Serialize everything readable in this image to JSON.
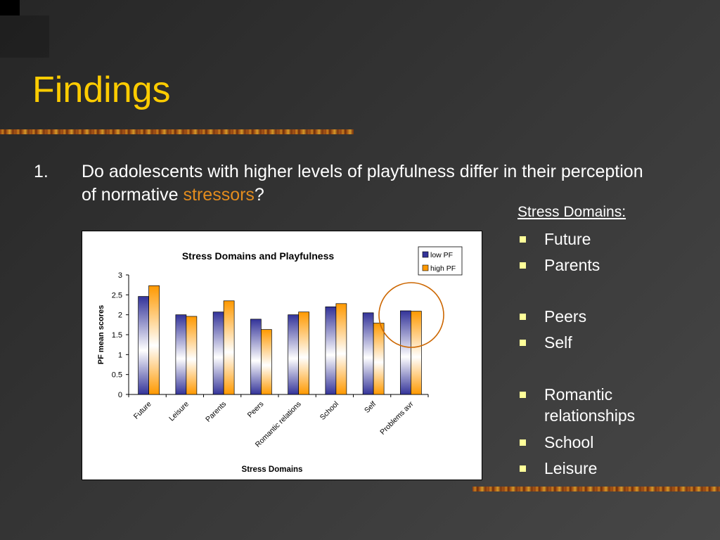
{
  "slide": {
    "title": "Findings",
    "question_number": "1.",
    "question_text": "Do adolescents with higher levels of playfulness differ in their perception of normative ",
    "question_accent": "stressors",
    "question_end": "?"
  },
  "domains": {
    "heading": "Stress  Domains:",
    "items": [
      {
        "label": "Future"
      },
      {
        "label": "Parents"
      },
      {
        "label": "Peers"
      },
      {
        "label": "Self"
      },
      {
        "label": "Romantic relationships"
      },
      {
        "label": "School"
      },
      {
        "label": "Leisure"
      }
    ]
  },
  "colors": {
    "title": "#ffcc00",
    "accent": "#e38c1e",
    "bullet": "#ffff99",
    "low_pf": "#333399",
    "high_pf": "#ff9900",
    "highlight_circle": "#cc6600"
  },
  "chart_data": {
    "type": "bar",
    "title": "Stress Domains and Playfulness",
    "xlabel": "Stress Domains",
    "ylabel": "PF mean scores",
    "ylim": [
      0,
      3
    ],
    "yticks": [
      "0",
      "0.5",
      "1",
      "1.5",
      "2",
      "2.5",
      "3"
    ],
    "categories": [
      "Future",
      "Leisure",
      "Parents",
      "Peers",
      "Romantic relations",
      "School",
      "Self",
      "Problems avr"
    ],
    "series": [
      {
        "name": "low  PF",
        "values": [
          2.46,
          2.0,
          2.07,
          1.89,
          2.0,
          2.2,
          2.05,
          2.1
        ]
      },
      {
        "name": "high PF",
        "values": [
          2.73,
          1.96,
          2.35,
          1.63,
          2.07,
          2.28,
          1.79,
          2.09
        ]
      }
    ],
    "legend": "top-right",
    "grid": false
  }
}
